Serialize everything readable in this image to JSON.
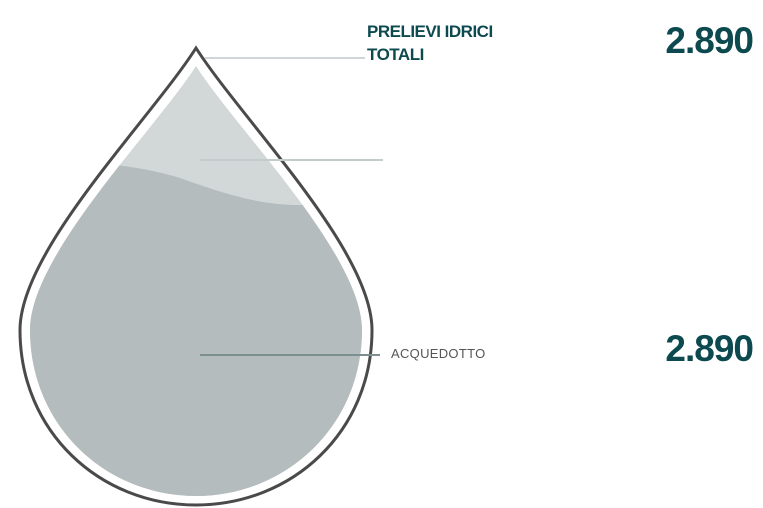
{
  "header": {
    "title": "PRELIEVI IDRICI TOTALI",
    "total": "2.890"
  },
  "items": [
    {
      "label": "ACQUEDOTTO",
      "value": "2.890"
    }
  ]
}
